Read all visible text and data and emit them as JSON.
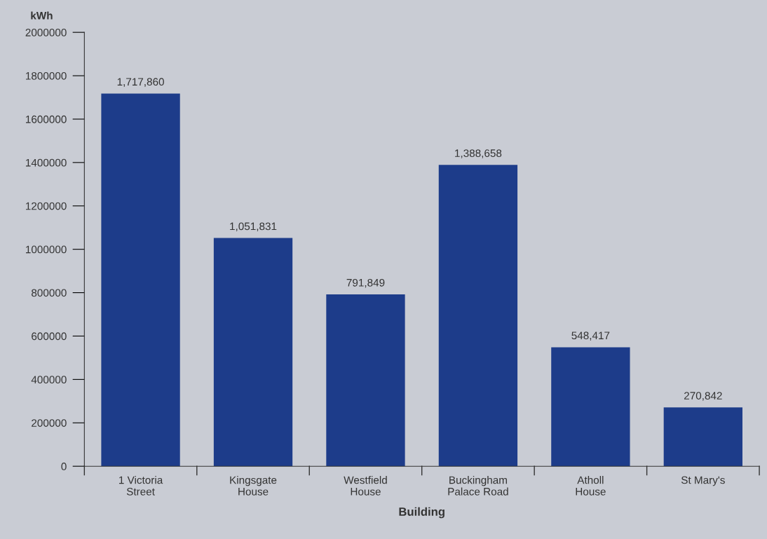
{
  "chart_data": {
    "type": "bar",
    "ylabel": "kWh",
    "xlabel": "Building",
    "categories": [
      "1 Victoria\nStreet",
      "Kingsgate\nHouse",
      "Westfield\nHouse",
      "Buckingham\nPalace Road",
      "Atholl\nHouse",
      "St Mary's"
    ],
    "values": [
      1717860,
      1051831,
      791849,
      1388658,
      548417,
      270842
    ],
    "value_labels": [
      "1,717,860",
      "1,051,831",
      "791,849",
      "1,388,658",
      "548,417",
      "270,842"
    ],
    "color": "#1d3c8a",
    "ylim": [
      0,
      2000000
    ],
    "yticks": [
      0,
      200000,
      400000,
      600000,
      800000,
      1000000,
      1200000,
      1400000,
      1600000,
      1800000,
      2000000
    ],
    "grid": false,
    "legend": false
  }
}
